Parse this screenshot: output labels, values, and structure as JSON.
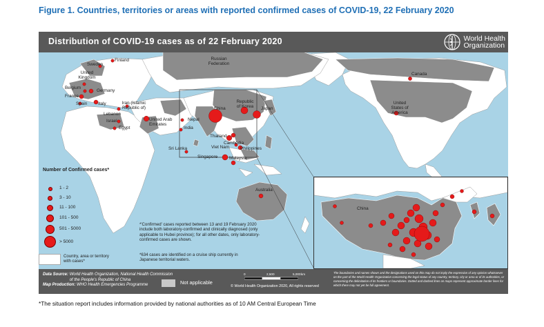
{
  "figure_title": "Figure 1. Countries, territories or areas with reported confirmed cases of COVID-19, 22 February 2020",
  "map_title": "Distribution of COVID-19 cases as of 22 February 2020",
  "who_logo": {
    "line1": "World Health",
    "line2": "Organization",
    "icon": "who-emblem-icon"
  },
  "country_labels": {
    "finland": "Finland",
    "sweden": "Sweden",
    "russia": "Russian Federation",
    "uk": "United Kingdom",
    "belgium": "Belgium",
    "germany": "Germany",
    "france": "France",
    "spain": "Spain",
    "italy": "Italy",
    "iran": "Iran (Islamic Republic of)",
    "lebanon": "Lebanon",
    "israel": "Israel",
    "egypt": "Egypt",
    "uae": "United Arab Emirates",
    "nepal": "Nepal",
    "india": "India",
    "srilanka": "Sri Lanka",
    "china": "China",
    "korea": "Republic of Korea",
    "japan": "Japan",
    "thailand": "Thailand",
    "cambodia": "Cambodia",
    "vietnam": "Viet Nam",
    "philippines": "Philippines",
    "singapore": "Singapore",
    "malaysia": "Malaysia",
    "australia": "Australia",
    "canada": "Canada",
    "usa": "United States of America",
    "inset_china": "China"
  },
  "legend": {
    "title": "Number of Confirmed cases*",
    "classes": [
      "1 - 2",
      "3 - 10",
      "11 - 100",
      "101 - 500",
      "501 - 5000",
      "> 5000"
    ],
    "country_label": "Country, area or territory with cases*",
    "marker_color": "#e51a1a"
  },
  "notes": {
    "confirmed": "*'Confirmed' cases reported between 13 and 19 February 2020 include both laboratory-confirmed and clinically diagnosed (only applicable to Hubei province); for all other dates, only laboratory-confirmed cases are shown.",
    "cruise": "*634 cases are identified on a cruise ship currently in Japanese territorial waters."
  },
  "footer": {
    "source_label": "Data Source:",
    "source_text": "World Health Organization, National Health Commission of the People's Republic of China",
    "production_label": "Map Production:",
    "production_text": "WHO Health Emergencies Programme",
    "not_applicable": "Not applicable",
    "scale_ticks": [
      "0",
      "2,500",
      "5,000"
    ],
    "scale_unit": "km",
    "copyright": "© World Health Organization 2020, All rights reserved",
    "disclaimer": "The boundaries and names shown and the designations used on this map do not imply the expression of any opinion whatsoever on the part of the World Health Organization concerning the legal status of any country, territory, city or area or of its authorities, or concerning the delimitation of its frontiers or boundaries. Dotted and dashed lines on maps represent approximate border lines for which there may not yet be full agreement."
  },
  "footnote": "*The situation report includes information provided by national authorities as of 10 AM Central European Time",
  "colors": {
    "ocean": "#a9d3e6",
    "land": "#ffffff",
    "affected": "#8c8c8c",
    "not_applicable": "#c8c8c8",
    "banner": "#595959",
    "title_blue": "#1f6fb5"
  }
}
